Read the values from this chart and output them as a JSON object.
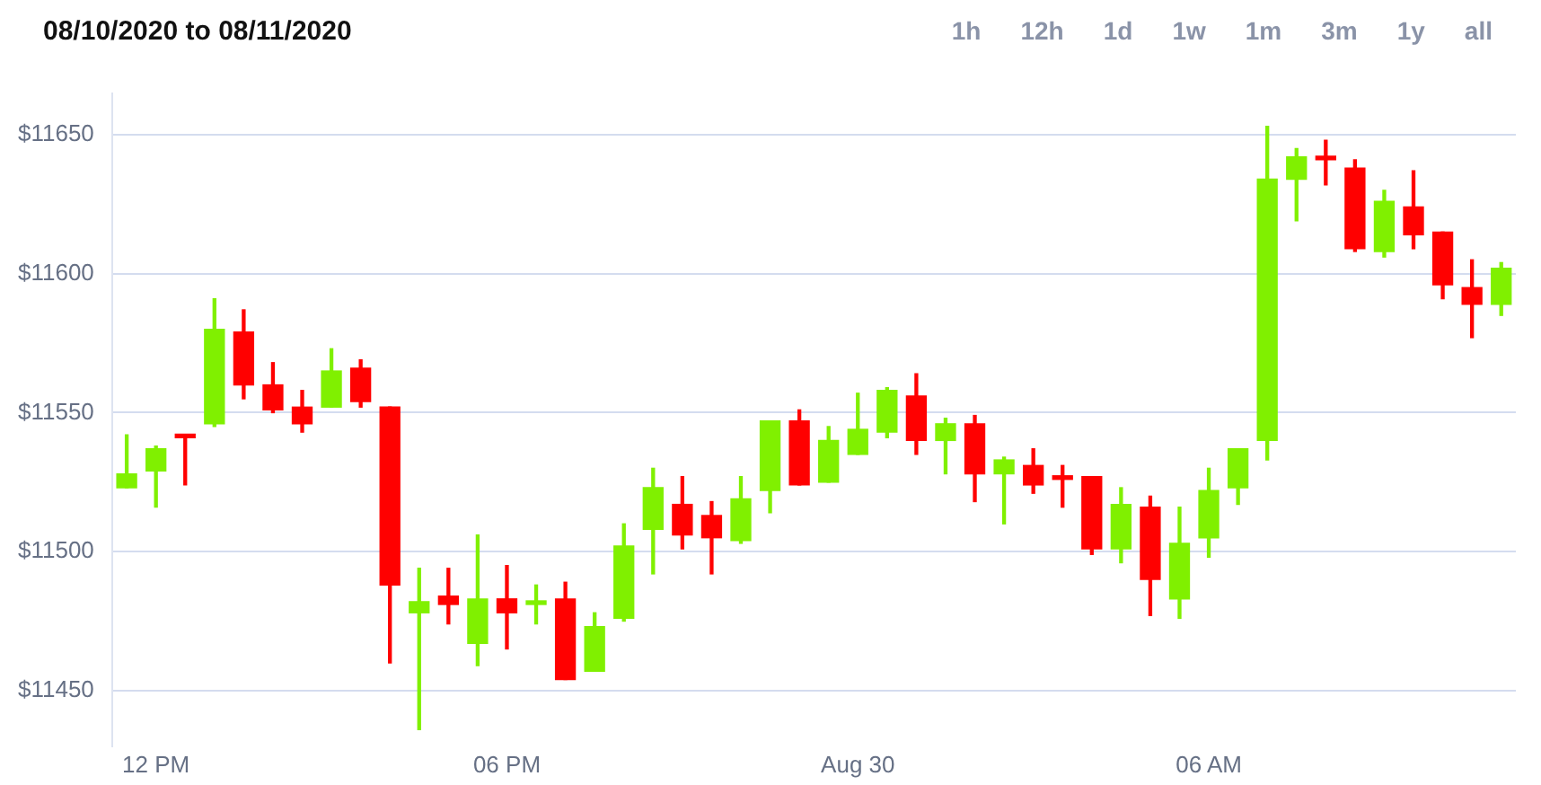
{
  "chart_data": {
    "type": "candlestick",
    "title": "08/10/2020 to 08/11/2020",
    "annotations": [
      "1h",
      "12h",
      "1d",
      "1w",
      "1m",
      "3m",
      "1y",
      "all"
    ],
    "categories": [
      null,
      "12 PM",
      null,
      null,
      null,
      null,
      null,
      null,
      null,
      null,
      null,
      null,
      null,
      "06 PM",
      null,
      null,
      null,
      null,
      null,
      null,
      null,
      null,
      null,
      null,
      null,
      "Aug 30",
      null,
      null,
      null,
      null,
      null,
      null,
      null,
      null,
      null,
      null,
      null,
      "06 AM",
      null,
      null,
      null,
      null,
      null,
      null,
      null,
      null,
      null,
      null
    ],
    "ohlc": [
      [
        11523,
        11542,
        11523,
        11528
      ],
      [
        11529,
        11538,
        11516,
        11537
      ],
      [
        11542,
        11542,
        11524,
        11541
      ],
      [
        11546,
        11591,
        11545,
        11580
      ],
      [
        11579,
        11587,
        11555,
        11560
      ],
      [
        11560,
        11568,
        11550,
        11551
      ],
      [
        11552,
        11558,
        11543,
        11546
      ],
      [
        11552,
        11573,
        11552,
        11565
      ],
      [
        11566,
        11569,
        11552,
        11554
      ],
      [
        11552,
        11552,
        11460,
        11488
      ],
      [
        11478,
        11494,
        11436,
        11482
      ],
      [
        11484,
        11494,
        11474,
        11481
      ],
      [
        11467,
        11506,
        11459,
        11483
      ],
      [
        11483,
        11495,
        11465,
        11478
      ],
      [
        11481,
        11488,
        11474,
        11482
      ],
      [
        11483,
        11489,
        11454,
        11454
      ],
      [
        11457,
        11478,
        11457,
        11473
      ],
      [
        11476,
        11510,
        11475,
        11502
      ],
      [
        11508,
        11530,
        11492,
        11523
      ],
      [
        11517,
        11527,
        11501,
        11506
      ],
      [
        11513,
        11518,
        11492,
        11505
      ],
      [
        11504,
        11527,
        11503,
        11519
      ],
      [
        11522,
        11547,
        11514,
        11547
      ],
      [
        11547,
        11551,
        11524,
        11524
      ],
      [
        11525,
        11545,
        11525,
        11540
      ],
      [
        11535,
        11557,
        11535,
        11544
      ],
      [
        11543,
        11559,
        11541,
        11558
      ],
      [
        11556,
        11564,
        11535,
        11540
      ],
      [
        11540,
        11548,
        11528,
        11546
      ],
      [
        11546,
        11549,
        11518,
        11528
      ],
      [
        11528,
        11534,
        11510,
        11533
      ],
      [
        11531,
        11537,
        11521,
        11524
      ],
      [
        11527,
        11531,
        11516,
        11526
      ],
      [
        11527,
        11527,
        11499,
        11501
      ],
      [
        11501,
        11523,
        11496,
        11517
      ],
      [
        11516,
        11520,
        11477,
        11490
      ],
      [
        11483,
        11516,
        11476,
        11503
      ],
      [
        11505,
        11530,
        11498,
        11522
      ],
      [
        11523,
        11537,
        11517,
        11537
      ],
      [
        11540,
        11653,
        11533,
        11634
      ],
      [
        11634,
        11645,
        11619,
        11642
      ],
      [
        11642,
        11648,
        11632,
        11641
      ],
      [
        11638,
        11641,
        11608,
        11609
      ],
      [
        11608,
        11630,
        11606,
        11626
      ],
      [
        11624,
        11637,
        11609,
        11614
      ],
      [
        11615,
        11615,
        11591,
        11596
      ],
      [
        11595,
        11605,
        11577,
        11589
      ],
      [
        11589,
        11604,
        11585,
        11602
      ]
    ],
    "colors": [
      "#80f000",
      "#80f000",
      "#ff0000",
      "#80f000",
      "#ff0000",
      "#ff0000",
      "#ff0000",
      "#80f000",
      "#ff0000",
      "#ff0000",
      "#80f000",
      "#ff0000",
      "#80f000",
      "#ff0000",
      "#80f000",
      "#ff0000",
      "#80f000",
      "#80f000",
      "#80f000",
      "#ff0000",
      "#ff0000",
      "#80f000",
      "#80f000",
      "#ff0000",
      "#80f000",
      "#80f000",
      "#80f000",
      "#ff0000",
      "#80f000",
      "#ff0000",
      "#80f000",
      "#ff0000",
      "#ff0000",
      "#ff0000",
      "#80f000",
      "#ff0000",
      "#80f000",
      "#80f000",
      "#80f000",
      "#80f000",
      "#80f000",
      "#ff0000",
      "#ff0000",
      "#80f000",
      "#ff0000",
      "#ff0000",
      "#ff0000",
      "#80f000"
    ],
    "ylim": [
      11430,
      11665
    ],
    "yticks": [
      {
        "value": 11450,
        "label": "$11450"
      },
      {
        "value": 11500,
        "label": "$11500"
      },
      {
        "value": 11550,
        "label": "$11550"
      },
      {
        "value": 11600,
        "label": "$11600"
      },
      {
        "value": 11650,
        "label": "$11650"
      }
    ],
    "grid": "y"
  }
}
